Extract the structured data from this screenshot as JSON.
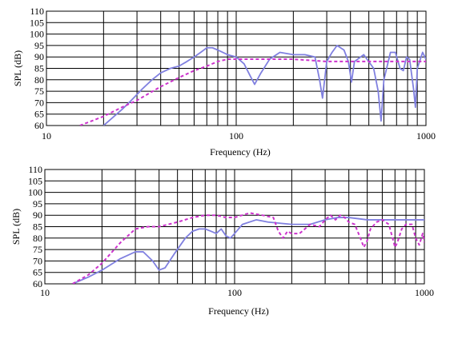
{
  "chart_data": [
    {
      "type": "line",
      "xlabel": "Frequency (Hz)",
      "ylabel": "SPL (dB)",
      "xscale": "log",
      "xlim": [
        10,
        1000
      ],
      "ylim": [
        60,
        110
      ],
      "grid": true,
      "x_tick_labels": [
        "10",
        "100",
        "1000"
      ],
      "y_tick_labels": [
        "60",
        "65",
        "70",
        "75",
        "80",
        "85",
        "90",
        "95",
        "100",
        "105",
        "110"
      ],
      "series": [
        {
          "style": "solid",
          "color": "#8080e0",
          "points": [
            [
              20,
              60
            ],
            [
              22,
              63
            ],
            [
              25,
              67
            ],
            [
              28,
              71
            ],
            [
              32,
              76
            ],
            [
              36,
              80
            ],
            [
              40,
              83
            ],
            [
              45,
              85
            ],
            [
              50,
              86
            ],
            [
              55,
              88
            ],
            [
              60,
              90
            ],
            [
              65,
              92
            ],
            [
              70,
              94
            ],
            [
              75,
              94
            ],
            [
              80,
              93
            ],
            [
              90,
              91
            ],
            [
              100,
              90
            ],
            [
              110,
              87
            ],
            [
              118,
              82
            ],
            [
              125,
              78
            ],
            [
              135,
              83
            ],
            [
              150,
              89
            ],
            [
              170,
              92
            ],
            [
              200,
              91
            ],
            [
              230,
              91
            ],
            [
              260,
              90
            ],
            [
              275,
              80
            ],
            [
              285,
              72
            ],
            [
              300,
              88
            ],
            [
              320,
              92
            ],
            [
              340,
              95
            ],
            [
              370,
              93
            ],
            [
              390,
              88
            ],
            [
              405,
              79
            ],
            [
              420,
              88
            ],
            [
              470,
              91
            ],
            [
              530,
              85
            ],
            [
              560,
              75
            ],
            [
              580,
              62
            ],
            [
              600,
              80
            ],
            [
              650,
              92
            ],
            [
              690,
              92
            ],
            [
              730,
              85
            ],
            [
              760,
              84
            ],
            [
              790,
              90
            ],
            [
              820,
              89
            ],
            [
              860,
              76
            ],
            [
              880,
              68
            ],
            [
              900,
              85
            ],
            [
              960,
              92
            ],
            [
              1000,
              89
            ]
          ]
        },
        {
          "style": "dashed",
          "color": "#cc33cc",
          "points": [
            [
              15,
              60
            ],
            [
              20,
              64
            ],
            [
              25,
              68
            ],
            [
              30,
              71
            ],
            [
              40,
              77
            ],
            [
              50,
              81
            ],
            [
              60,
              84
            ],
            [
              70,
              86
            ],
            [
              80,
              88
            ],
            [
              90,
              89
            ],
            [
              100,
              89
            ],
            [
              130,
              89
            ],
            [
              200,
              89
            ],
            [
              300,
              88
            ],
            [
              500,
              88
            ],
            [
              1000,
              88
            ]
          ]
        }
      ]
    },
    {
      "type": "line",
      "xlabel": "Frequency (Hz)",
      "ylabel": "SPL (dB)",
      "xscale": "log",
      "xlim": [
        10,
        1000
      ],
      "ylim": [
        60,
        110
      ],
      "grid": true,
      "x_tick_labels": [
        "10",
        "100",
        "1000"
      ],
      "y_tick_labels": [
        "60",
        "65",
        "70",
        "75",
        "80",
        "85",
        "90",
        "95",
        "100",
        "105",
        "110"
      ],
      "series": [
        {
          "style": "solid",
          "color": "#8080e0",
          "points": [
            [
              14,
              60
            ],
            [
              17,
              63
            ],
            [
              20,
              66
            ],
            [
              25,
              71
            ],
            [
              30,
              74
            ],
            [
              33,
              74
            ],
            [
              37,
              70
            ],
            [
              40,
              66
            ],
            [
              43,
              67
            ],
            [
              48,
              73
            ],
            [
              55,
              80
            ],
            [
              60,
              83
            ],
            [
              65,
              84
            ],
            [
              70,
              84
            ],
            [
              75,
              83
            ],
            [
              80,
              82
            ],
            [
              85,
              84
            ],
            [
              90,
              81
            ],
            [
              95,
              80
            ],
            [
              100,
              82
            ],
            [
              110,
              86
            ],
            [
              130,
              88
            ],
            [
              150,
              87
            ],
            [
              200,
              86
            ],
            [
              250,
              86
            ],
            [
              300,
              88
            ],
            [
              350,
              89
            ],
            [
              400,
              89
            ],
            [
              500,
              88
            ],
            [
              700,
              88
            ],
            [
              1000,
              88
            ]
          ]
        },
        {
          "style": "dashed",
          "color": "#cc33cc",
          "points": [
            [
              14,
              60
            ],
            [
              17,
              64
            ],
            [
              20,
              69
            ],
            [
              25,
              78
            ],
            [
              30,
              84
            ],
            [
              35,
              85
            ],
            [
              40,
              85
            ],
            [
              50,
              87
            ],
            [
              60,
              89
            ],
            [
              70,
              90
            ],
            [
              80,
              90
            ],
            [
              90,
              89
            ],
            [
              100,
              89
            ],
            [
              120,
              91
            ],
            [
              140,
              90
            ],
            [
              160,
              89
            ],
            [
              170,
              83
            ],
            [
              180,
              80
            ],
            [
              190,
              83
            ],
            [
              200,
              82
            ],
            [
              220,
              82
            ],
            [
              250,
              86
            ],
            [
              280,
              85
            ],
            [
              300,
              88
            ],
            [
              320,
              90
            ],
            [
              340,
              88
            ],
            [
              360,
              90
            ],
            [
              380,
              89
            ],
            [
              400,
              87
            ],
            [
              430,
              86
            ],
            [
              460,
              80
            ],
            [
              480,
              76
            ],
            [
              500,
              79
            ],
            [
              520,
              84
            ],
            [
              560,
              87
            ],
            [
              600,
              88
            ],
            [
              650,
              86
            ],
            [
              680,
              80
            ],
            [
              700,
              76
            ],
            [
              720,
              78
            ],
            [
              760,
              84
            ],
            [
              800,
              86
            ],
            [
              860,
              86
            ],
            [
              900,
              80
            ],
            [
              940,
              77
            ],
            [
              980,
              82
            ],
            [
              1000,
              78
            ]
          ]
        }
      ]
    }
  ]
}
